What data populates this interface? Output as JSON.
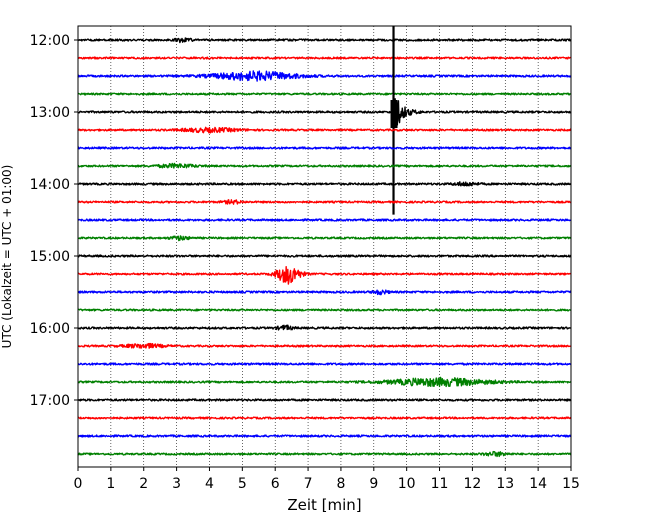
{
  "chart_data": {
    "type": "line",
    "title": "",
    "xlabel": "Zeit  [min]",
    "ylabel": "UTC (Lokalzeit = UTC + 01:00)",
    "xlim": [
      0,
      15
    ],
    "x_ticks": [
      "0",
      "1",
      "2",
      "3",
      "4",
      "5",
      "6",
      "7",
      "8",
      "9",
      "10",
      "11",
      "12",
      "13",
      "14",
      "15"
    ],
    "grid": "vertical-dotted",
    "row_interval_minutes": 15,
    "hour_labels": [
      "12:00",
      "13:00",
      "14:00",
      "15:00",
      "16:00",
      "17:00"
    ],
    "trace_colors": [
      "#000000",
      "#ff0000",
      "#0000ff",
      "#008000"
    ],
    "rows": [
      {
        "time": "12:00",
        "color": "#000000",
        "amp": 0.6,
        "events": [
          {
            "t": 3.2,
            "amp": 1.2,
            "dur": 0.4
          }
        ]
      },
      {
        "time": "12:15",
        "color": "#ff0000",
        "amp": 0.55,
        "events": []
      },
      {
        "time": "12:30",
        "color": "#0000ff",
        "amp": 0.6,
        "events": [
          {
            "t": 5.4,
            "amp": 2.6,
            "dur": 2.2
          }
        ]
      },
      {
        "time": "12:45",
        "color": "#008000",
        "amp": 0.55,
        "events": []
      },
      {
        "time": "13:00",
        "color": "#000000",
        "amp": 0.6,
        "events": [
          {
            "t": 9.6,
            "amp": 14,
            "dur": 0.9
          }
        ]
      },
      {
        "time": "13:15",
        "color": "#ff0000",
        "amp": 0.55,
        "events": [
          {
            "t": 4.0,
            "amp": 1.2,
            "dur": 1.5
          }
        ]
      },
      {
        "time": "13:30",
        "color": "#0000ff",
        "amp": 0.6,
        "events": []
      },
      {
        "time": "13:45",
        "color": "#008000",
        "amp": 0.55,
        "events": [
          {
            "t": 3.0,
            "amp": 1.1,
            "dur": 1.0
          }
        ]
      },
      {
        "time": "14:00",
        "color": "#000000",
        "amp": 0.6,
        "events": [
          {
            "t": 11.8,
            "amp": 1.1,
            "dur": 0.6
          }
        ]
      },
      {
        "time": "14:15",
        "color": "#ff0000",
        "amp": 0.55,
        "events": [
          {
            "t": 4.7,
            "amp": 1.0,
            "dur": 0.5
          }
        ]
      },
      {
        "time": "14:30",
        "color": "#0000ff",
        "amp": 0.6,
        "events": []
      },
      {
        "time": "14:45",
        "color": "#008000",
        "amp": 0.55,
        "events": [
          {
            "t": 3.1,
            "amp": 1.1,
            "dur": 0.5
          }
        ]
      },
      {
        "time": "15:00",
        "color": "#000000",
        "amp": 0.6,
        "events": []
      },
      {
        "time": "15:15",
        "color": "#ff0000",
        "amp": 0.55,
        "events": [
          {
            "t": 6.4,
            "amp": 6,
            "dur": 0.6
          }
        ]
      },
      {
        "time": "15:30",
        "color": "#0000ff",
        "amp": 0.6,
        "events": [
          {
            "t": 9.2,
            "amp": 1.2,
            "dur": 0.4
          }
        ]
      },
      {
        "time": "15:45",
        "color": "#008000",
        "amp": 0.55,
        "events": []
      },
      {
        "time": "16:00",
        "color": "#000000",
        "amp": 0.6,
        "events": [
          {
            "t": 6.3,
            "amp": 1.3,
            "dur": 0.4
          }
        ]
      },
      {
        "time": "16:15",
        "color": "#ff0000",
        "amp": 0.55,
        "events": [
          {
            "t": 2.0,
            "amp": 1.2,
            "dur": 1.0
          }
        ]
      },
      {
        "time": "16:30",
        "color": "#0000ff",
        "amp": 0.6,
        "events": []
      },
      {
        "time": "16:45",
        "color": "#008000",
        "amp": 0.55,
        "events": [
          {
            "t": 11.0,
            "amp": 2.4,
            "dur": 2.6
          }
        ]
      },
      {
        "time": "17:00",
        "color": "#000000",
        "amp": 0.6,
        "events": []
      },
      {
        "time": "17:15",
        "color": "#ff0000",
        "amp": 0.55,
        "events": []
      },
      {
        "time": "17:30",
        "color": "#0000ff",
        "amp": 0.6,
        "events": []
      },
      {
        "time": "17:45",
        "color": "#008000",
        "amp": 0.55,
        "events": [
          {
            "t": 12.7,
            "amp": 1.2,
            "dur": 0.6
          }
        ]
      }
    ]
  }
}
